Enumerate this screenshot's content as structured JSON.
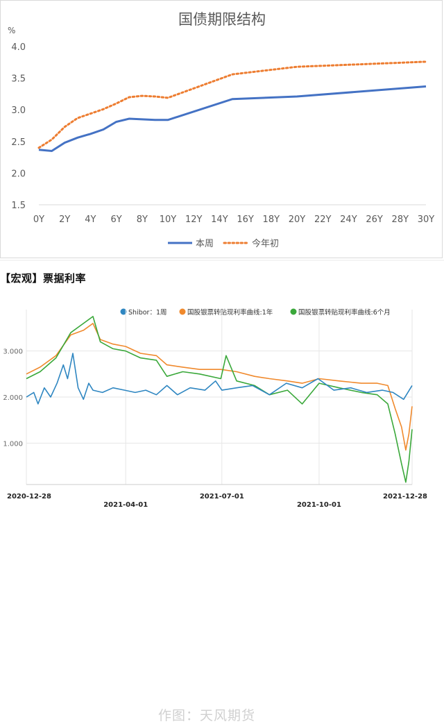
{
  "yield_chart": {
    "title": "国债期限结构",
    "unit": "%",
    "legend": {
      "this_week": "本周",
      "start_of_year": "今年初"
    },
    "colors": {
      "this_week": "#4472c4",
      "start_of_year": "#ed7d31"
    }
  },
  "bill_chart": {
    "title": "【宏观】票据利率",
    "watermark": "作图：天风期货",
    "legend": {
      "shibor": "Shibor：1周",
      "bill_1y": "国股银票转贴现利率曲线:1年",
      "bill_6m": "国股银票转贴现利率曲线:6个月"
    },
    "colors": {
      "shibor": "#2e86c1",
      "bill_1y": "#f0892c",
      "bill_6m": "#3aa83a"
    }
  },
  "chart_data": [
    {
      "type": "line",
      "title": "国债期限结构",
      "ylabel": "%",
      "x": [
        0,
        1,
        2,
        3,
        4,
        5,
        6,
        7,
        8,
        9,
        10,
        15,
        20,
        30
      ],
      "xticks": [
        "0Y",
        "2Y",
        "4Y",
        "6Y",
        "8Y",
        "10Y",
        "12Y",
        "14Y",
        "16Y",
        "18Y",
        "20Y",
        "22Y",
        "24Y",
        "26Y",
        "28Y",
        "30Y"
      ],
      "xlim": [
        0,
        30
      ],
      "ylim": [
        1.5,
        4.0
      ],
      "yticks": [
        "1.5",
        "2.0",
        "2.5",
        "3.0",
        "3.5",
        "4.0"
      ],
      "grid": false,
      "legend_position": "bottom",
      "series": [
        {
          "name": "本周",
          "style": "solid",
          "values": [
            2.37,
            2.35,
            2.48,
            2.56,
            2.62,
            2.69,
            2.81,
            2.86,
            2.85,
            2.84,
            2.84,
            3.17,
            3.21,
            3.37
          ]
        },
        {
          "name": "今年初",
          "style": "dotted",
          "values": [
            2.4,
            2.53,
            2.73,
            2.87,
            2.94,
            3.01,
            3.1,
            3.2,
            3.22,
            3.21,
            3.19,
            3.56,
            3.68,
            3.76
          ]
        }
      ]
    },
    {
      "type": "line",
      "title": "【宏观】票据利率",
      "x_ticks": [
        "2020-12-28",
        "2021-04-01",
        "2021-07-01",
        "2021-10-01",
        "2021-12-28"
      ],
      "yticks": [
        "1.000",
        "2.000",
        "3.000"
      ],
      "ylim": [
        0.1,
        3.9
      ],
      "grid": true,
      "legend_position": "top",
      "series": [
        {
          "name": "Shibor：1周",
          "points": [
            [
              "2020-12-28",
              2.0
            ],
            [
              "2021-01-04",
              2.1
            ],
            [
              "2021-01-08",
              1.85
            ],
            [
              "2021-01-14",
              2.2
            ],
            [
              "2021-01-20",
              2.0
            ],
            [
              "2021-01-26",
              2.3
            ],
            [
              "2021-02-01",
              2.7
            ],
            [
              "2021-02-05",
              2.4
            ],
            [
              "2021-02-10",
              2.95
            ],
            [
              "2021-02-15",
              2.2
            ],
            [
              "2021-02-20",
              1.95
            ],
            [
              "2021-02-25",
              2.3
            ],
            [
              "2021-03-01",
              2.15
            ],
            [
              "2021-03-10",
              2.1
            ],
            [
              "2021-03-20",
              2.2
            ],
            [
              "2021-03-31",
              2.15
            ],
            [
              "2021-04-10",
              2.1
            ],
            [
              "2021-04-20",
              2.15
            ],
            [
              "2021-04-30",
              2.05
            ],
            [
              "2021-05-10",
              2.25
            ],
            [
              "2021-05-20",
              2.05
            ],
            [
              "2021-06-01",
              2.2
            ],
            [
              "2021-06-15",
              2.15
            ],
            [
              "2021-06-25",
              2.35
            ],
            [
              "2021-07-01",
              2.15
            ],
            [
              "2021-07-15",
              2.2
            ],
            [
              "2021-07-30",
              2.25
            ],
            [
              "2021-08-15",
              2.05
            ],
            [
              "2021-08-31",
              2.3
            ],
            [
              "2021-09-15",
              2.2
            ],
            [
              "2021-09-30",
              2.4
            ],
            [
              "2021-10-15",
              2.15
            ],
            [
              "2021-10-31",
              2.2
            ],
            [
              "2021-11-15",
              2.1
            ],
            [
              "2021-11-30",
              2.15
            ],
            [
              "2021-12-10",
              2.1
            ],
            [
              "2021-12-20",
              1.95
            ],
            [
              "2021-12-28",
              2.25
            ]
          ]
        },
        {
          "name": "国股银票转贴现利率曲线:1年",
          "points": [
            [
              "2020-12-28",
              2.5
            ],
            [
              "2021-01-10",
              2.65
            ],
            [
              "2021-01-25",
              2.9
            ],
            [
              "2021-02-08",
              3.35
            ],
            [
              "2021-02-20",
              3.45
            ],
            [
              "2021-03-01",
              3.6
            ],
            [
              "2021-03-08",
              3.25
            ],
            [
              "2021-03-20",
              3.15
            ],
            [
              "2021-04-01",
              3.1
            ],
            [
              "2021-04-15",
              2.95
            ],
            [
              "2021-04-30",
              2.9
            ],
            [
              "2021-05-10",
              2.7
            ],
            [
              "2021-05-25",
              2.65
            ],
            [
              "2021-06-10",
              2.6
            ],
            [
              "2021-06-30",
              2.6
            ],
            [
              "2021-07-15",
              2.55
            ],
            [
              "2021-08-01",
              2.45
            ],
            [
              "2021-08-15",
              2.4
            ],
            [
              "2021-09-01",
              2.35
            ],
            [
              "2021-09-15",
              2.3
            ],
            [
              "2021-10-01",
              2.4
            ],
            [
              "2021-10-20",
              2.35
            ],
            [
              "2021-11-10",
              2.3
            ],
            [
              "2021-11-25",
              2.3
            ],
            [
              "2021-12-05",
              2.25
            ],
            [
              "2021-12-12",
              1.75
            ],
            [
              "2021-12-18",
              1.35
            ],
            [
              "2021-12-22",
              0.85
            ],
            [
              "2021-12-25",
              1.2
            ],
            [
              "2021-12-28",
              1.8
            ]
          ]
        },
        {
          "name": "国股银票转贴现利率曲线:6个月",
          "points": [
            [
              "2020-12-28",
              2.4
            ],
            [
              "2021-01-10",
              2.55
            ],
            [
              "2021-01-25",
              2.85
            ],
            [
              "2021-02-08",
              3.4
            ],
            [
              "2021-02-20",
              3.6
            ],
            [
              "2021-03-01",
              3.75
            ],
            [
              "2021-03-08",
              3.2
            ],
            [
              "2021-03-20",
              3.05
            ],
            [
              "2021-04-01",
              3.0
            ],
            [
              "2021-04-15",
              2.85
            ],
            [
              "2021-04-30",
              2.8
            ],
            [
              "2021-05-10",
              2.45
            ],
            [
              "2021-05-25",
              2.55
            ],
            [
              "2021-06-10",
              2.5
            ],
            [
              "2021-06-30",
              2.4
            ],
            [
              "2021-07-05",
              2.9
            ],
            [
              "2021-07-15",
              2.35
            ],
            [
              "2021-08-01",
              2.25
            ],
            [
              "2021-08-15",
              2.05
            ],
            [
              "2021-09-01",
              2.15
            ],
            [
              "2021-09-15",
              1.85
            ],
            [
              "2021-10-01",
              2.3
            ],
            [
              "2021-10-20",
              2.2
            ],
            [
              "2021-11-10",
              2.1
            ],
            [
              "2021-11-25",
              2.05
            ],
            [
              "2021-12-05",
              1.85
            ],
            [
              "2021-12-12",
              1.2
            ],
            [
              "2021-12-18",
              0.55
            ],
            [
              "2021-12-22",
              0.15
            ],
            [
              "2021-12-25",
              0.6
            ],
            [
              "2021-12-28",
              1.3
            ]
          ]
        }
      ]
    }
  ]
}
